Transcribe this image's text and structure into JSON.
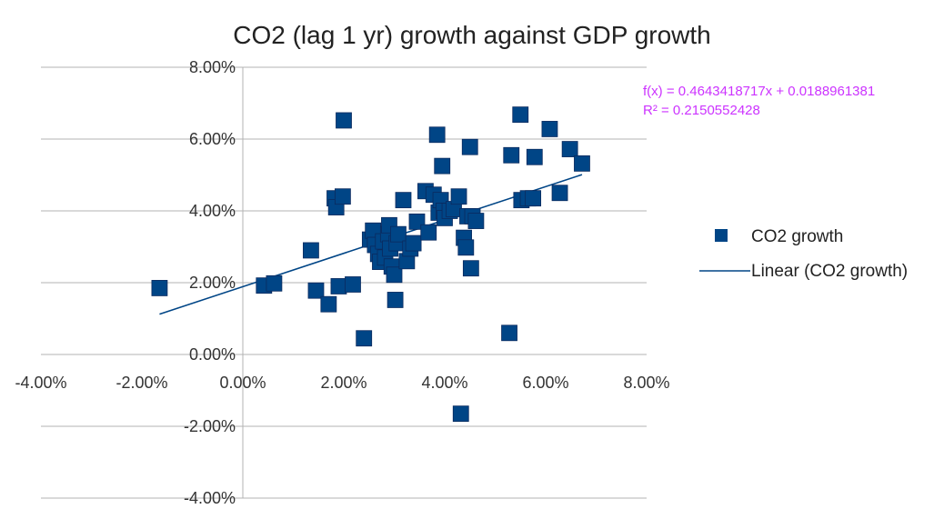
{
  "chart_data": {
    "type": "scatter",
    "title": "CO2 (lag 1 yr) growth against GDP growth",
    "xlabel": "",
    "ylabel": "",
    "xlim": [
      -0.04,
      0.08
    ],
    "ylim": [
      -0.04,
      0.08
    ],
    "x_ticks": [
      -0.04,
      -0.02,
      0.0,
      0.02,
      0.04,
      0.06,
      0.08
    ],
    "y_ticks": [
      -0.04,
      -0.02,
      0.0,
      0.02,
      0.04,
      0.06,
      0.08
    ],
    "x_tick_labels": [
      "-4.00%",
      "-2.00%",
      "0.00%",
      "2.00%",
      "4.00%",
      "6.00%",
      "8.00%"
    ],
    "y_tick_labels": [
      "-4.00%",
      "-2.00%",
      "0.00%",
      "2.00%",
      "4.00%",
      "6.00%",
      "8.00%"
    ],
    "grid": "horizontal",
    "legend_position": "right",
    "series": [
      {
        "name": "CO2 growth",
        "marker": "square",
        "color": "#004586",
        "points": [
          [
            -0.0165,
            0.0185
          ],
          [
            0.0042,
            0.0192
          ],
          [
            0.0062,
            0.0198
          ],
          [
            0.0135,
            0.029
          ],
          [
            0.0145,
            0.0178
          ],
          [
            0.017,
            0.014
          ],
          [
            0.0182,
            0.0435
          ],
          [
            0.0185,
            0.041
          ],
          [
            0.019,
            0.019
          ],
          [
            0.0198,
            0.044
          ],
          [
            0.02,
            0.0652
          ],
          [
            0.0218,
            0.0195
          ],
          [
            0.024,
            0.0045
          ],
          [
            0.0252,
            0.032
          ],
          [
            0.0258,
            0.0345
          ],
          [
            0.0262,
            0.0305
          ],
          [
            0.0268,
            0.028
          ],
          [
            0.0272,
            0.0258
          ],
          [
            0.0278,
            0.0315
          ],
          [
            0.0282,
            0.027
          ],
          [
            0.0288,
            0.0335
          ],
          [
            0.029,
            0.036
          ],
          [
            0.0292,
            0.0295
          ],
          [
            0.0295,
            0.0245
          ],
          [
            0.03,
            0.0222
          ],
          [
            0.0302,
            0.0152
          ],
          [
            0.0305,
            0.031
          ],
          [
            0.0308,
            0.0335
          ],
          [
            0.0318,
            0.043
          ],
          [
            0.0325,
            0.026
          ],
          [
            0.0332,
            0.0295
          ],
          [
            0.0338,
            0.031
          ],
          [
            0.0345,
            0.037
          ],
          [
            0.0362,
            0.0455
          ],
          [
            0.0368,
            0.034
          ],
          [
            0.0378,
            0.0445
          ],
          [
            0.0385,
            0.0612
          ],
          [
            0.0388,
            0.0395
          ],
          [
            0.0392,
            0.043
          ],
          [
            0.0395,
            0.0525
          ],
          [
            0.0398,
            0.04
          ],
          [
            0.04,
            0.038
          ],
          [
            0.041,
            0.04
          ],
          [
            0.0418,
            0.0405
          ],
          [
            0.0428,
            0.044
          ],
          [
            0.0432,
            -0.0165
          ],
          [
            0.0438,
            0.0325
          ],
          [
            0.0442,
            0.0298
          ],
          [
            0.0445,
            0.0385
          ],
          [
            0.045,
            0.0578
          ],
          [
            0.0452,
            0.024
          ],
          [
            0.0455,
            0.0385
          ],
          [
            0.0462,
            0.0372
          ],
          [
            0.0528,
            0.006
          ],
          [
            0.0532,
            0.0555
          ],
          [
            0.055,
            0.0668
          ],
          [
            0.0552,
            0.043
          ],
          [
            0.0565,
            0.0435
          ],
          [
            0.0575,
            0.0435
          ],
          [
            0.0578,
            0.055
          ],
          [
            0.0608,
            0.0628
          ],
          [
            0.0628,
            0.045
          ],
          [
            0.0648,
            0.0572
          ],
          [
            0.0672,
            0.0532
          ]
        ]
      }
    ],
    "trendline": {
      "name": "Linear (CO2 growth)",
      "slope": 0.4643418717,
      "intercept": 0.0188961381,
      "x_range": [
        -0.0165,
        0.0672
      ],
      "color": "#004586",
      "equation_label": "f(x) = 0.4643418717x + 0.0188961381",
      "r2_label": "R² = 0.2150552428",
      "label_color": "#cc33ff"
    },
    "legend": {
      "items": [
        {
          "label": "CO2 growth",
          "kind": "marker"
        },
        {
          "label": "Linear (CO2 growth)",
          "kind": "line"
        }
      ]
    }
  }
}
